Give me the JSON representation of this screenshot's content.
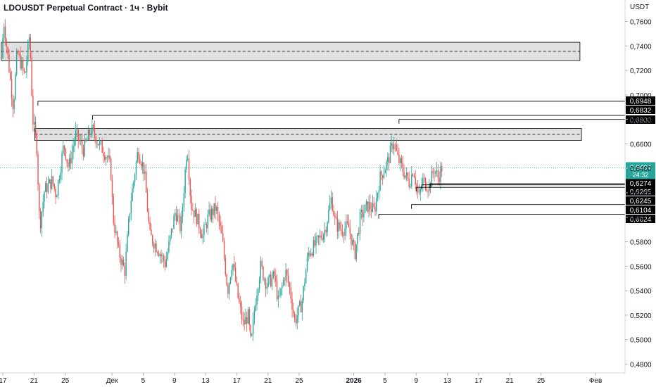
{
  "header": {
    "title": "LDOUSDT Perpetual Contract · 1ч · Bybit",
    "currency": "USDT"
  },
  "colors": {
    "up": "#26a69a",
    "down": "#ef5350",
    "zone_fill": "#e0e0e0",
    "line": "#000000",
    "current_price": "#26a69a"
  },
  "chart_data": {
    "type": "candlestick",
    "title": "LDOUSDT Perpetual Contract · 1ч · Bybit",
    "ylabel": "USDT",
    "ylim": [
      0.475,
      0.77
    ],
    "y_ticks": [
      "0,7600",
      "0,7400",
      "0,7200",
      "0,7000",
      "0,6800",
      "0,6600",
      "0,6400",
      "0,6200",
      "0,6000",
      "0,5800",
      "0,5600",
      "0,5400",
      "0,5200",
      "0,5000",
      "0,4800"
    ],
    "x_ticks": [
      {
        "label": "17",
        "day": 0
      },
      {
        "label": "21",
        "day": 4
      },
      {
        "label": "25",
        "day": 8
      },
      {
        "label": "Дек",
        "day": 14
      },
      {
        "label": "5",
        "day": 18
      },
      {
        "label": "9",
        "day": 22
      },
      {
        "label": "13",
        "day": 26
      },
      {
        "label": "17",
        "day": 30
      },
      {
        "label": "21",
        "day": 34
      },
      {
        "label": "25",
        "day": 38
      },
      {
        "label": "2026",
        "day": 45,
        "bold": true
      },
      {
        "label": "5",
        "day": 49
      },
      {
        "label": "9",
        "day": 53
      },
      {
        "label": "13",
        "day": 57
      },
      {
        "label": "17",
        "day": 61
      },
      {
        "label": "21",
        "day": 65
      },
      {
        "label": "25",
        "day": 69
      },
      {
        "label": "Фев",
        "day": 76
      }
    ],
    "price_path": [
      [
        0,
        0.73
      ],
      [
        0.3,
        0.76
      ],
      [
        1,
        0.72
      ],
      [
        1.5,
        0.69
      ],
      [
        2,
        0.735
      ],
      [
        3,
        0.715
      ],
      [
        3.6,
        0.75
      ],
      [
        4,
        0.68
      ],
      [
        4.5,
        0.66
      ],
      [
        4.9,
        0.592
      ],
      [
        5.5,
        0.622
      ],
      [
        6.5,
        0.63
      ],
      [
        7,
        0.618
      ],
      [
        8,
        0.66
      ],
      [
        8.6,
        0.64
      ],
      [
        9.5,
        0.668
      ],
      [
        10.5,
        0.655
      ],
      [
        11.5,
        0.672
      ],
      [
        12.5,
        0.66
      ],
      [
        13.5,
        0.65
      ],
      [
        14,
        0.64
      ],
      [
        14.3,
        0.6
      ],
      [
        15,
        0.572
      ],
      [
        15.8,
        0.556
      ],
      [
        16.5,
        0.61
      ],
      [
        17.5,
        0.655
      ],
      [
        18.3,
        0.638
      ],
      [
        19,
        0.585
      ],
      [
        20,
        0.575
      ],
      [
        21,
        0.562
      ],
      [
        22.3,
        0.605
      ],
      [
        23,
        0.59
      ],
      [
        23.8,
        0.66
      ],
      [
        24.3,
        0.61
      ],
      [
        25,
        0.6
      ],
      [
        25.8,
        0.585
      ],
      [
        26.5,
        0.6
      ],
      [
        27.5,
        0.608
      ],
      [
        28.3,
        0.582
      ],
      [
        29,
        0.54
      ],
      [
        29.6,
        0.565
      ],
      [
        30.3,
        0.535
      ],
      [
        31,
        0.512
      ],
      [
        31.6,
        0.52
      ],
      [
        32,
        0.494
      ],
      [
        32.5,
        0.53
      ],
      [
        33.2,
        0.56
      ],
      [
        34,
        0.545
      ],
      [
        35,
        0.552
      ],
      [
        35.5,
        0.53
      ],
      [
        36.4,
        0.556
      ],
      [
        37,
        0.54
      ],
      [
        37.6,
        0.515
      ],
      [
        38.5,
        0.53
      ],
      [
        39.3,
        0.57
      ],
      [
        40.5,
        0.58
      ],
      [
        41.5,
        0.59
      ],
      [
        42.3,
        0.616
      ],
      [
        42.8,
        0.595
      ],
      [
        43.5,
        0.59
      ],
      [
        44.5,
        0.592
      ],
      [
        45.3,
        0.57
      ],
      [
        46,
        0.6
      ],
      [
        47,
        0.61
      ],
      [
        47.8,
        0.605
      ],
      [
        48.5,
        0.632
      ],
      [
        49.5,
        0.645
      ],
      [
        50.3,
        0.663
      ],
      [
        50.8,
        0.648
      ],
      [
        51.5,
        0.638
      ],
      [
        52.3,
        0.628
      ],
      [
        52.8,
        0.64
      ],
      [
        53.5,
        0.615
      ],
      [
        54,
        0.63
      ],
      [
        54.8,
        0.625
      ],
      [
        55.5,
        0.64
      ],
      [
        56,
        0.632
      ],
      [
        56.4,
        0.6404
      ]
    ],
    "zones": [
      {
        "y1": 0.7281,
        "y2": 0.743,
        "x1_day": -0.2,
        "x2_day": 74.0
      },
      {
        "y1": 0.6628,
        "y2": 0.6726,
        "x1_day": 4.1,
        "x2_day": 74.2
      }
    ],
    "level_lines": [
      {
        "value": 0.6948,
        "label": "0,6948",
        "start_day": 4.5
      },
      {
        "value": 0.6832,
        "label": "0,6832",
        "start_day": 11.5
      },
      {
        "value": 0.68,
        "label": "0,6800",
        "start_day": 50.8
      },
      {
        "value": 0.6274,
        "label": "0,6274",
        "start_day": 54.8
      },
      {
        "value": 0.6265,
        "label": "0,6265",
        "start_day": 53.7
      },
      {
        "value": 0.6245,
        "label": "0,6245",
        "start_day": 53.0
      },
      {
        "value": 0.6104,
        "label": "0,6104",
        "start_day": 52.4
      },
      {
        "value": 0.6024,
        "label": "0,6024",
        "start_day": 48.2
      }
    ],
    "current_price": {
      "value": 0.6404,
      "label": "0,6404",
      "countdown": "24:32"
    }
  }
}
